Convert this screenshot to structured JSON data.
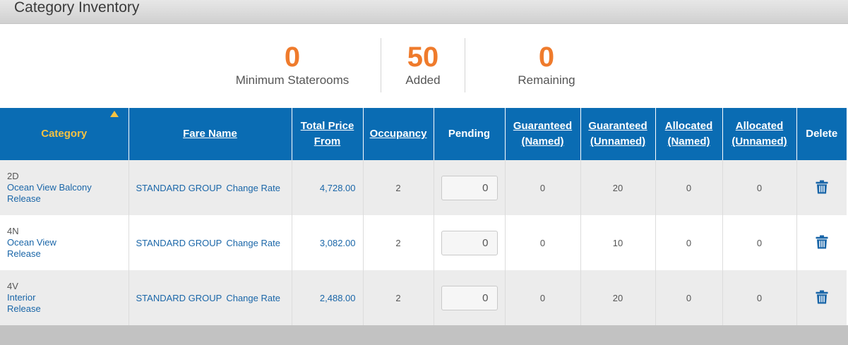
{
  "header": {
    "title": "Category Inventory"
  },
  "summary": [
    {
      "value": "0",
      "label": "Minimum Staterooms"
    },
    {
      "value": "50",
      "label": "Added"
    },
    {
      "value": "0",
      "label": "Remaining"
    }
  ],
  "table": {
    "columns": [
      {
        "line1": "Category",
        "line2": ""
      },
      {
        "line1": "Fare Name",
        "line2": ""
      },
      {
        "line1": "Total Price",
        "line2": "From"
      },
      {
        "line1": "Occupancy",
        "line2": ""
      },
      {
        "line1": "Pending",
        "line2": ""
      },
      {
        "line1": "Guaranteed",
        "line2": "(Named)"
      },
      {
        "line1": "Guaranteed",
        "line2": "(Unnamed)"
      },
      {
        "line1": "Allocated",
        "line2": "(Named)"
      },
      {
        "line1": "Allocated",
        "line2": "(Unnamed)"
      },
      {
        "line1": "Delete",
        "line2": ""
      }
    ],
    "rows": [
      {
        "code": "2D",
        "name": "Ocean View Balcony",
        "release": "Release",
        "fare": "STANDARD GROUP",
        "change_rate": "Change Rate",
        "price": "4,728.00",
        "occupancy": "2",
        "pending": "0",
        "guaranteed_named": "0",
        "guaranteed_unnamed": "20",
        "allocated_named": "0",
        "allocated_unnamed": "0"
      },
      {
        "code": "4N",
        "name": "Ocean View",
        "release": "Release",
        "fare": "STANDARD GROUP",
        "change_rate": "Change Rate",
        "price": "3,082.00",
        "occupancy": "2",
        "pending": "0",
        "guaranteed_named": "0",
        "guaranteed_unnamed": "10",
        "allocated_named": "0",
        "allocated_unnamed": "0"
      },
      {
        "code": "4V",
        "name": "Interior",
        "release": "Release",
        "fare": "STANDARD GROUP",
        "change_rate": "Change Rate",
        "price": "2,488.00",
        "occupancy": "2",
        "pending": "0",
        "guaranteed_named": "0",
        "guaranteed_unnamed": "20",
        "allocated_named": "0",
        "allocated_unnamed": "0"
      }
    ]
  },
  "icons": {
    "sort": "sort-ascending-icon",
    "delete": "trash-icon"
  },
  "colors": {
    "header_bg": "#0a6cb3",
    "accent_number": "#ef7b2c",
    "sorted_header": "#f5c242",
    "link": "#1a66a8"
  }
}
